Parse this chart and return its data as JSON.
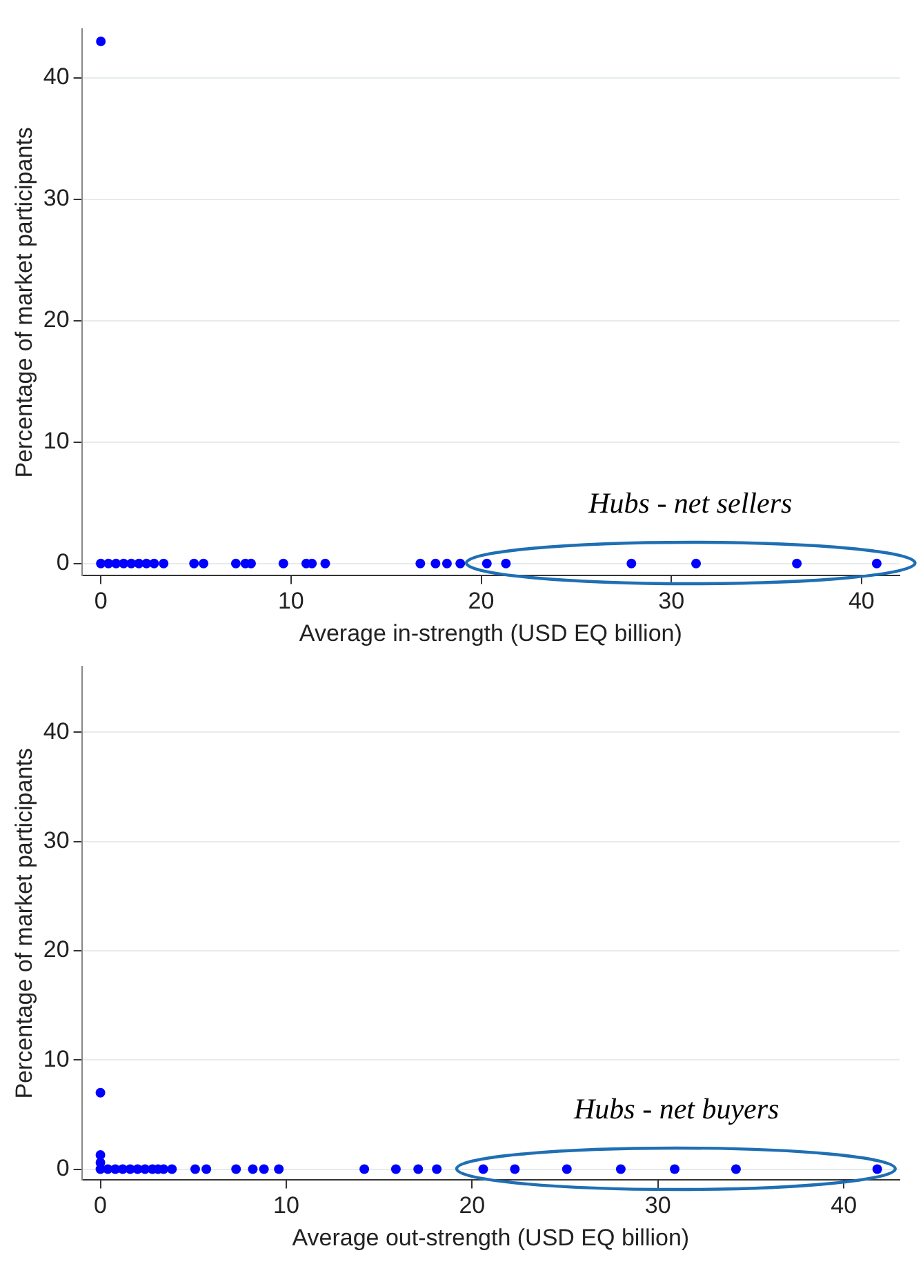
{
  "chart_data": [
    {
      "type": "scatter",
      "xlabel": "Average in-strength (USD EQ billion)",
      "ylabel": "Percentage of market participants",
      "xlim": [
        -1,
        42
      ],
      "ylim": [
        -1,
        44
      ],
      "xticks": [
        0,
        10,
        20,
        30,
        40
      ],
      "yticks": [
        0,
        10,
        20,
        30,
        40
      ],
      "grid": "y",
      "marker": "circle",
      "annotations": [
        {
          "text": "Hubs - net sellers",
          "x": 31,
          "y": 0
        }
      ],
      "series": [
        {
          "color": "#0000ff",
          "x": [
            0,
            0,
            0.4,
            0.8,
            1.2,
            1.6,
            2.0,
            2.4,
            2.8,
            3.3,
            4.9,
            5.4,
            7.1,
            7.6,
            7.9,
            9.6,
            10.8,
            11.1,
            11.8,
            16.8,
            17.6,
            18.2,
            18.9,
            20.3,
            21.3,
            27.9,
            31.3,
            36.6,
            40.8
          ],
          "values": [
            43,
            0,
            0,
            0,
            0,
            0,
            0,
            0,
            0,
            0,
            0,
            0,
            0,
            0,
            0,
            0,
            0,
            0,
            0,
            0,
            0,
            0,
            0,
            0,
            0,
            0,
            0,
            0,
            0
          ]
        }
      ]
    },
    {
      "type": "scatter",
      "xlabel": "Average out-strength (USD EQ billion)",
      "ylabel": "Percentage of market participants",
      "xlim": [
        -1,
        43
      ],
      "ylim": [
        -1,
        46
      ],
      "xticks": [
        0,
        10,
        20,
        30,
        40
      ],
      "yticks": [
        0,
        10,
        20,
        30,
        40
      ],
      "grid": "y",
      "marker": "circle",
      "annotations": [
        {
          "text": "Hubs - net buyers",
          "x": 31,
          "y": 0
        }
      ],
      "series": [
        {
          "color": "#0000ff",
          "x": [
            0,
            0,
            0,
            0,
            0.4,
            0.8,
            1.2,
            1.6,
            2.0,
            2.4,
            2.8,
            3.1,
            3.4,
            3.85,
            5.1,
            5.7,
            7.3,
            8.2,
            8.8,
            9.6,
            14.2,
            15.9,
            17.1,
            18.1,
            20.6,
            22.3,
            25.1,
            28.0,
            30.9,
            34.2,
            41.8
          ],
          "values": [
            7,
            1.3,
            0.6,
            0,
            0,
            0,
            0,
            0,
            0,
            0,
            0,
            0,
            0,
            0,
            0,
            0,
            0,
            0,
            0,
            0,
            0,
            0,
            0,
            0,
            0,
            0,
            0,
            0,
            0,
            0,
            0
          ]
        }
      ]
    }
  ]
}
